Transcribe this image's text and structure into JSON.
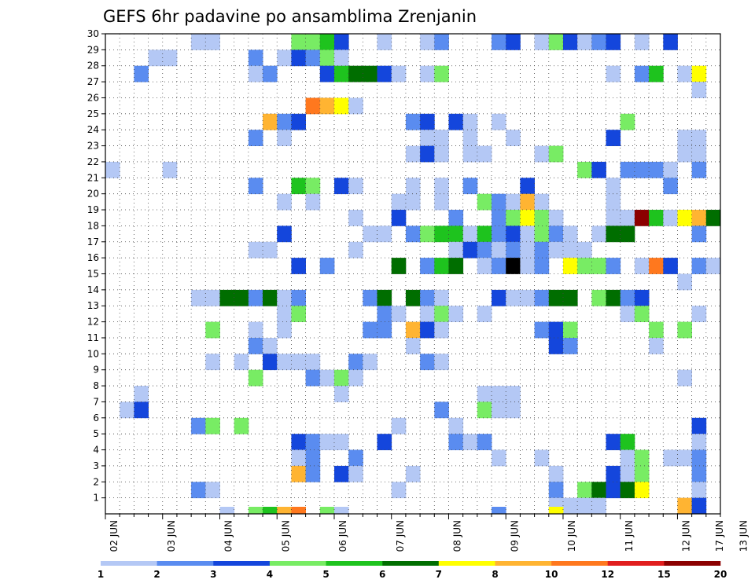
{
  "chart_data": {
    "type": "heatmap",
    "title": "GEFS 6hr padavine po ansamblima Zrenjanin",
    "y_ticks": [
      "1",
      "2",
      "3",
      "4",
      "5",
      "6",
      "7",
      "8",
      "9",
      "10",
      "11",
      "12",
      "13",
      "14",
      "15",
      "16",
      "17",
      "18",
      "19",
      "20",
      "21",
      "22",
      "23",
      "24",
      "25",
      "26",
      "27",
      "28",
      "29",
      "30"
    ],
    "x_ticks": [
      "02 JUN",
      "03 JUN",
      "04 JUN",
      "05 JUN",
      "06 JUN",
      "07 JUN",
      "08 JUN",
      "09 JUN",
      "10 JUN",
      "11 JUN",
      "12 JUN",
      "13 JUN",
      "14 JUN",
      "15 JUN",
      "16 JUN",
      "17 JUN"
    ],
    "levels": [
      "1",
      "2",
      "3",
      "4",
      "5",
      "6",
      "7",
      "8",
      "10",
      "12",
      "15",
      "20"
    ],
    "colors": [
      "#b4c8f5",
      "#5a8cf0",
      "#1446dc",
      "#78ec64",
      "#1ec31e",
      "#006e00",
      "#ffff00",
      "#ffb432",
      "#ff781e",
      "#e11e1e",
      "#8c0000"
    ],
    "cells": [
      [
        30,
        [
          [
            6,
            1
          ],
          [
            7,
            1
          ],
          [
            13,
            4
          ],
          [
            14,
            4
          ],
          [
            15,
            5
          ],
          [
            16,
            3
          ],
          [
            19,
            1
          ],
          [
            22,
            1
          ],
          [
            23,
            2
          ],
          [
            27,
            2
          ],
          [
            28,
            3
          ],
          [
            30,
            1
          ],
          [
            31,
            4
          ],
          [
            32,
            3
          ],
          [
            33,
            1
          ],
          [
            34,
            2
          ],
          [
            35,
            3
          ],
          [
            37,
            1
          ],
          [
            39,
            3
          ]
        ]
      ],
      [
        29,
        [
          [
            3,
            1
          ],
          [
            4,
            1
          ],
          [
            10,
            2
          ],
          [
            12,
            1
          ],
          [
            13,
            3
          ],
          [
            14,
            2
          ],
          [
            15,
            4
          ],
          [
            16,
            1
          ]
        ]
      ],
      [
        28,
        [
          [
            2,
            2
          ],
          [
            10,
            1
          ],
          [
            11,
            2
          ],
          [
            15,
            3
          ],
          [
            16,
            5
          ],
          [
            17,
            6
          ],
          [
            18,
            6
          ],
          [
            19,
            3
          ],
          [
            20,
            1
          ],
          [
            22,
            1
          ],
          [
            23,
            4
          ],
          [
            35,
            1
          ],
          [
            37,
            2
          ],
          [
            38,
            5
          ],
          [
            40,
            1
          ],
          [
            41,
            7
          ]
        ]
      ],
      [
        27,
        [
          [
            41,
            1
          ]
        ]
      ],
      [
        26,
        [
          [
            14,
            9
          ],
          [
            15,
            8
          ],
          [
            16,
            7
          ],
          [
            17,
            1
          ]
        ]
      ],
      [
        25,
        [
          [
            11,
            8
          ],
          [
            12,
            2
          ],
          [
            13,
            3
          ],
          [
            21,
            2
          ],
          [
            22,
            3
          ],
          [
            24,
            3
          ],
          [
            25,
            1
          ],
          [
            27,
            1
          ],
          [
            36,
            4
          ]
        ]
      ],
      [
        24,
        [
          [
            10,
            2
          ],
          [
            12,
            1
          ],
          [
            22,
            1
          ],
          [
            23,
            1
          ],
          [
            25,
            1
          ],
          [
            28,
            1
          ],
          [
            35,
            3
          ],
          [
            40,
            1
          ],
          [
            41,
            1
          ]
        ]
      ],
      [
        23,
        [
          [
            21,
            1
          ],
          [
            22,
            3
          ],
          [
            23,
            1
          ],
          [
            25,
            1
          ],
          [
            26,
            1
          ],
          [
            30,
            1
          ],
          [
            31,
            4
          ],
          [
            40,
            1
          ],
          [
            41,
            1
          ]
        ]
      ],
      [
        22,
        [
          [
            0,
            1
          ],
          [
            4,
            1
          ],
          [
            33,
            4
          ],
          [
            34,
            3
          ],
          [
            36,
            2
          ],
          [
            37,
            2
          ],
          [
            38,
            2
          ],
          [
            39,
            1
          ],
          [
            41,
            2
          ]
        ]
      ],
      [
        21,
        [
          [
            10,
            2
          ],
          [
            13,
            5
          ],
          [
            14,
            4
          ],
          [
            16,
            3
          ],
          [
            17,
            1
          ],
          [
            21,
            1
          ],
          [
            23,
            1
          ],
          [
            25,
            2
          ],
          [
            29,
            3
          ],
          [
            35,
            1
          ],
          [
            39,
            2
          ]
        ]
      ],
      [
        20,
        [
          [
            12,
            1
          ],
          [
            14,
            1
          ],
          [
            20,
            1
          ],
          [
            21,
            1
          ],
          [
            23,
            1
          ],
          [
            26,
            4
          ],
          [
            27,
            2
          ],
          [
            28,
            1
          ],
          [
            29,
            8
          ],
          [
            30,
            1
          ],
          [
            35,
            1
          ]
        ]
      ],
      [
        19,
        [
          [
            17,
            1
          ],
          [
            20,
            3
          ],
          [
            24,
            2
          ],
          [
            27,
            2
          ],
          [
            28,
            4
          ],
          [
            29,
            7
          ],
          [
            30,
            4
          ],
          [
            31,
            1
          ],
          [
            35,
            1
          ],
          [
            36,
            1
          ],
          [
            37,
            11
          ],
          [
            38,
            5
          ],
          [
            39,
            1
          ],
          [
            40,
            7
          ],
          [
            41,
            8
          ],
          [
            42,
            6
          ]
        ]
      ],
      [
        18,
        [
          [
            12,
            3
          ],
          [
            18,
            1
          ],
          [
            19,
            1
          ],
          [
            21,
            2
          ],
          [
            22,
            4
          ],
          [
            23,
            5
          ],
          [
            24,
            5
          ],
          [
            25,
            1
          ],
          [
            26,
            5
          ],
          [
            27,
            2
          ],
          [
            28,
            3
          ],
          [
            29,
            1
          ],
          [
            30,
            4
          ],
          [
            31,
            2
          ],
          [
            32,
            1
          ],
          [
            34,
            1
          ],
          [
            35,
            6
          ],
          [
            36,
            6
          ],
          [
            41,
            2
          ]
        ]
      ],
      [
        17,
        [
          [
            10,
            1
          ],
          [
            11,
            1
          ],
          [
            17,
            1
          ],
          [
            24,
            1
          ],
          [
            25,
            3
          ],
          [
            26,
            2
          ],
          [
            27,
            1
          ],
          [
            28,
            2
          ],
          [
            29,
            1
          ],
          [
            30,
            2
          ],
          [
            31,
            1
          ],
          [
            32,
            1
          ],
          [
            33,
            1
          ]
        ]
      ],
      [
        16,
        [
          [
            13,
            3
          ],
          [
            15,
            2
          ],
          [
            20,
            6
          ],
          [
            22,
            2
          ],
          [
            23,
            5
          ],
          [
            24,
            6
          ],
          [
            26,
            1
          ],
          [
            27,
            2
          ],
          [
            28,
            12
          ],
          [
            29,
            1
          ],
          [
            30,
            2
          ],
          [
            32,
            7
          ],
          [
            33,
            4
          ],
          [
            34,
            4
          ],
          [
            35,
            2
          ],
          [
            37,
            1
          ],
          [
            38,
            9
          ],
          [
            39,
            3
          ],
          [
            41,
            2
          ],
          [
            42,
            1
          ]
        ]
      ],
      [
        15,
        [
          [
            40,
            1
          ]
        ]
      ],
      [
        14,
        [
          [
            6,
            1
          ],
          [
            7,
            1
          ],
          [
            8,
            6
          ],
          [
            9,
            6
          ],
          [
            10,
            2
          ],
          [
            11,
            6
          ],
          [
            12,
            1
          ],
          [
            13,
            2
          ],
          [
            18,
            2
          ],
          [
            19,
            6
          ],
          [
            21,
            6
          ],
          [
            22,
            2
          ],
          [
            23,
            1
          ],
          [
            27,
            3
          ],
          [
            28,
            1
          ],
          [
            29,
            1
          ],
          [
            30,
            2
          ],
          [
            31,
            6
          ],
          [
            32,
            6
          ],
          [
            34,
            4
          ],
          [
            35,
            6
          ],
          [
            36,
            2
          ],
          [
            37,
            3
          ]
        ]
      ],
      [
        13,
        [
          [
            12,
            1
          ],
          [
            13,
            4
          ],
          [
            19,
            2
          ],
          [
            20,
            1
          ],
          [
            22,
            1
          ],
          [
            23,
            4
          ],
          [
            24,
            1
          ],
          [
            26,
            1
          ],
          [
            36,
            1
          ],
          [
            37,
            4
          ],
          [
            41,
            1
          ]
        ]
      ],
      [
        12,
        [
          [
            7,
            4
          ],
          [
            10,
            1
          ],
          [
            12,
            1
          ],
          [
            18,
            2
          ],
          [
            19,
            2
          ],
          [
            21,
            8
          ],
          [
            22,
            3
          ],
          [
            23,
            1
          ],
          [
            30,
            2
          ],
          [
            31,
            3
          ],
          [
            32,
            4
          ],
          [
            38,
            4
          ],
          [
            40,
            4
          ]
        ]
      ],
      [
        11,
        [
          [
            10,
            2
          ],
          [
            11,
            1
          ],
          [
            21,
            1
          ],
          [
            31,
            3
          ],
          [
            32,
            2
          ],
          [
            38,
            1
          ]
        ]
      ],
      [
        10,
        [
          [
            7,
            1
          ],
          [
            9,
            1
          ],
          [
            11,
            3
          ],
          [
            12,
            1
          ],
          [
            13,
            1
          ],
          [
            14,
            1
          ],
          [
            17,
            2
          ],
          [
            18,
            1
          ],
          [
            22,
            2
          ],
          [
            23,
            1
          ]
        ]
      ],
      [
        9,
        [
          [
            10,
            4
          ],
          [
            14,
            2
          ],
          [
            15,
            1
          ],
          [
            16,
            4
          ],
          [
            17,
            1
          ],
          [
            40,
            1
          ]
        ]
      ],
      [
        8,
        [
          [
            2,
            1
          ],
          [
            16,
            1
          ],
          [
            26,
            1
          ],
          [
            27,
            1
          ],
          [
            28,
            1
          ]
        ]
      ],
      [
        7,
        [
          [
            1,
            1
          ],
          [
            2,
            3
          ],
          [
            23,
            2
          ],
          [
            26,
            4
          ],
          [
            27,
            1
          ],
          [
            28,
            1
          ]
        ]
      ],
      [
        6,
        [
          [
            6,
            2
          ],
          [
            7,
            4
          ],
          [
            9,
            4
          ],
          [
            20,
            1
          ],
          [
            24,
            1
          ],
          [
            41,
            3
          ]
        ]
      ],
      [
        5,
        [
          [
            13,
            3
          ],
          [
            14,
            2
          ],
          [
            15,
            1
          ],
          [
            16,
            1
          ],
          [
            19,
            3
          ],
          [
            24,
            2
          ],
          [
            25,
            1
          ],
          [
            26,
            2
          ],
          [
            35,
            3
          ],
          [
            36,
            5
          ],
          [
            41,
            1
          ]
        ]
      ],
      [
        4,
        [
          [
            13,
            1
          ],
          [
            14,
            2
          ],
          [
            17,
            2
          ],
          [
            27,
            1
          ],
          [
            30,
            1
          ],
          [
            36,
            1
          ],
          [
            37,
            4
          ],
          [
            39,
            1
          ],
          [
            40,
            1
          ],
          [
            41,
            2
          ]
        ]
      ],
      [
        3,
        [
          [
            13,
            8
          ],
          [
            14,
            2
          ],
          [
            16,
            3
          ],
          [
            17,
            1
          ],
          [
            21,
            1
          ],
          [
            31,
            1
          ],
          [
            35,
            3
          ],
          [
            36,
            1
          ],
          [
            37,
            4
          ],
          [
            41,
            2
          ]
        ]
      ],
      [
        2,
        [
          [
            6,
            2
          ],
          [
            7,
            1
          ],
          [
            20,
            1
          ],
          [
            31,
            2
          ],
          [
            33,
            4
          ],
          [
            34,
            6
          ],
          [
            35,
            3
          ],
          [
            36,
            6
          ],
          [
            37,
            7
          ],
          [
            41,
            1
          ]
        ]
      ],
      [
        1,
        [
          [
            31,
            1
          ],
          [
            32,
            1
          ],
          [
            33,
            1
          ],
          [
            34,
            1
          ],
          [
            40,
            8
          ],
          [
            41,
            3
          ]
        ]
      ]
    ],
    "bottom_cells": [
      [
        8,
        1
      ],
      [
        10,
        4
      ],
      [
        11,
        5
      ],
      [
        12,
        8
      ],
      [
        13,
        9
      ],
      [
        15,
        4
      ],
      [
        16,
        1
      ],
      [
        27,
        2
      ],
      [
        31,
        7
      ]
    ]
  }
}
